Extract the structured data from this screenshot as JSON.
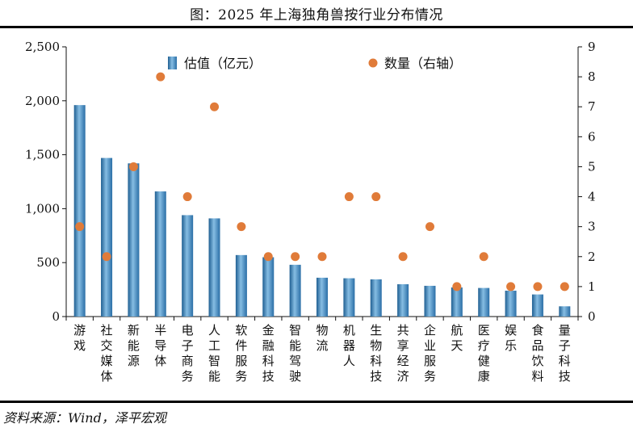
{
  "header": {
    "title": "图：2025 年上海独角兽按行业分布情况"
  },
  "footer": {
    "source": "资料来源：Wind，泽平宏观"
  },
  "colors": {
    "bar": "#3a87bf",
    "bar_light": "#86bde3",
    "bar_dark": "#1f5f92",
    "dot": "#e07b39"
  },
  "chart_data": {
    "type": "bar",
    "title": "2025 年上海独角兽按行业分布情况",
    "categories": [
      "游戏",
      "社交媒体",
      "新能源",
      "半导体",
      "电子商务",
      "人工智能",
      "软件服务",
      "金融科技",
      "智能驾驶",
      "物流",
      "机器人",
      "生物科技",
      "共享经济",
      "企业服务",
      "航天",
      "医疗健康",
      "娱乐",
      "食品饮料",
      "量子科技"
    ],
    "series": [
      {
        "name": "估值（亿元）",
        "kind": "bar",
        "axis": "left",
        "values": [
          1960,
          1470,
          1420,
          1160,
          940,
          910,
          570,
          550,
          480,
          360,
          355,
          345,
          300,
          285,
          270,
          265,
          240,
          205,
          95
        ]
      },
      {
        "name": "数量（右轴）",
        "kind": "scatter",
        "axis": "right",
        "values": [
          3,
          2,
          5,
          8,
          4,
          7,
          3,
          2,
          2,
          2,
          4,
          4,
          2,
          3,
          1,
          2,
          1,
          1,
          1
        ]
      }
    ],
    "y_left": {
      "min": 0,
      "max": 2500,
      "step": 500,
      "ticks": [
        "0",
        "500",
        "1,000",
        "1,500",
        "2,000",
        "2,500"
      ]
    },
    "y_right": {
      "min": 0,
      "max": 9,
      "step": 1,
      "ticks": [
        "0",
        "1",
        "2",
        "3",
        "4",
        "5",
        "6",
        "7",
        "8",
        "9"
      ]
    },
    "legend": {
      "placement": "top-center",
      "bar_label": "估值（亿元）",
      "dot_label": "数量（右轴）"
    }
  }
}
